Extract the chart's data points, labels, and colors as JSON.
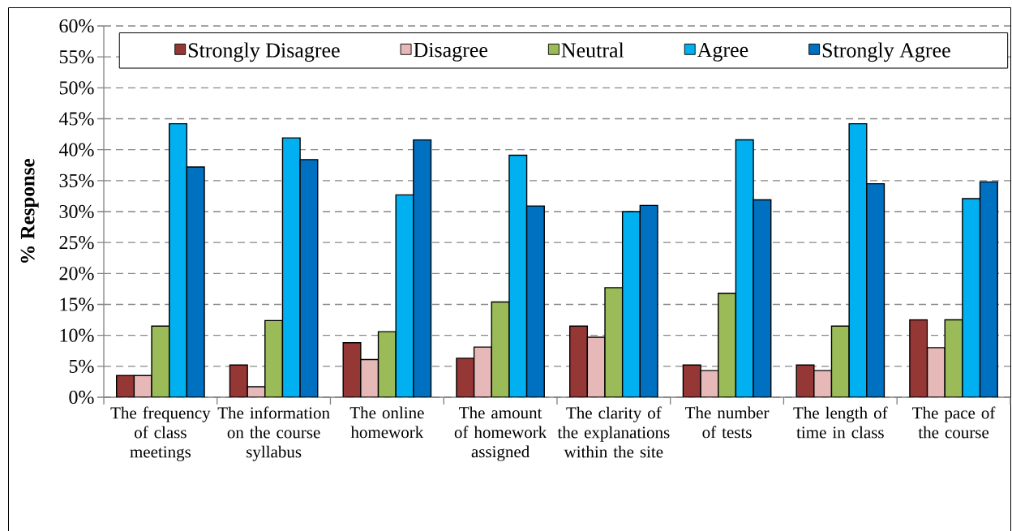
{
  "chart_data": {
    "type": "bar",
    "ylabel": "% Response",
    "categories": [
      "The frequency of class meetings",
      "The information on the course syllabus",
      "The online homework",
      "The amount of homework assigned",
      "The clarity of the explanations within the site",
      "The number of tests",
      "The length of time in class",
      "The pace of the course"
    ],
    "series": [
      {
        "name": "Strongly Disagree",
        "color": "#953735",
        "values": [
          3.5,
          5.2,
          8.8,
          6.3,
          11.5,
          5.2,
          5.2,
          12.5
        ]
      },
      {
        "name": "Disagree",
        "color": "#e6b9b8",
        "values": [
          3.5,
          1.7,
          6.1,
          8.1,
          9.7,
          4.3,
          4.3,
          8.0
        ]
      },
      {
        "name": "Neutral",
        "color": "#9bbb59",
        "values": [
          11.5,
          12.4,
          10.6,
          15.4,
          17.7,
          16.8,
          11.5,
          12.5
        ]
      },
      {
        "name": "Agree",
        "color": "#00b0f0",
        "values": [
          44.2,
          41.9,
          32.7,
          39.1,
          30.0,
          41.6,
          44.2,
          32.1
        ]
      },
      {
        "name": "Strongly Agree",
        "color": "#0070c0",
        "values": [
          37.2,
          38.4,
          41.6,
          30.9,
          31.0,
          31.9,
          34.5,
          34.8
        ]
      }
    ],
    "ylim": [
      0,
      60
    ],
    "yticks": [
      {
        "value": 0,
        "label": "0%"
      },
      {
        "value": 5,
        "label": "5%"
      },
      {
        "value": 10,
        "label": "10%"
      },
      {
        "value": 15,
        "label": "15%"
      },
      {
        "value": 20,
        "label": "20%"
      },
      {
        "value": 25,
        "label": "25%"
      },
      {
        "value": 30,
        "label": "30%"
      },
      {
        "value": 35,
        "label": "35%"
      },
      {
        "value": 40,
        "label": "40%"
      },
      {
        "value": 45,
        "label": "45%"
      },
      {
        "value": 50,
        "label": "50%"
      },
      {
        "value": 55,
        "label": "55%"
      },
      {
        "value": 60,
        "label": "60%"
      }
    ],
    "grid": "y",
    "legend": "top"
  }
}
